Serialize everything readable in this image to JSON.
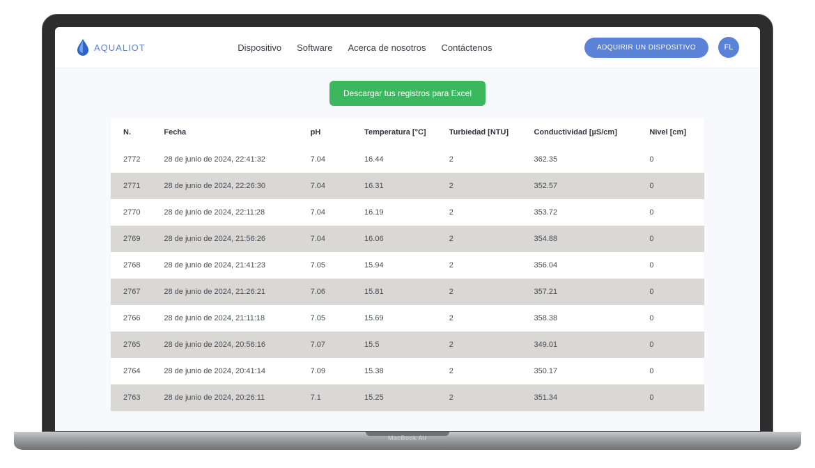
{
  "brand": {
    "name": "AQUALIOT"
  },
  "nav": {
    "items": [
      {
        "label": "Dispositivo"
      },
      {
        "label": "Software"
      },
      {
        "label": "Acerca de nosotros"
      },
      {
        "label": "Contáctenos"
      }
    ]
  },
  "cta": {
    "label": "ADQUIRIR UN DISPOSITIVO"
  },
  "avatar": {
    "initials": "FL"
  },
  "download": {
    "label": "Descargar tus registros para Excel"
  },
  "device_label": "MacBook Air",
  "colors": {
    "primary": "#5a82d6",
    "success": "#3bb75e",
    "row_alt": "#d9d8d4",
    "page_bg": "#f8f9fc",
    "text": "#3a3f4a"
  },
  "table": {
    "columns": [
      {
        "key": "n",
        "label": "N."
      },
      {
        "key": "fecha",
        "label": "Fecha"
      },
      {
        "key": "ph",
        "label": "pH"
      },
      {
        "key": "temp",
        "label": "Temperatura [°C]"
      },
      {
        "key": "turb",
        "label": "Turbiedad [NTU]"
      },
      {
        "key": "cond",
        "label": "Conductividad [µS/cm]"
      },
      {
        "key": "nivel",
        "label": "Nivel [cm]"
      }
    ],
    "rows": [
      {
        "n": "2772",
        "fecha": "28 de junio de 2024, 22:41:32",
        "ph": "7.04",
        "temp": "16.44",
        "turb": "2",
        "cond": "362.35",
        "nivel": "0"
      },
      {
        "n": "2771",
        "fecha": "28 de junio de 2024, 22:26:30",
        "ph": "7.04",
        "temp": "16.31",
        "turb": "2",
        "cond": "352.57",
        "nivel": "0"
      },
      {
        "n": "2770",
        "fecha": "28 de junio de 2024, 22:11:28",
        "ph": "7.04",
        "temp": "16.19",
        "turb": "2",
        "cond": "353.72",
        "nivel": "0"
      },
      {
        "n": "2769",
        "fecha": "28 de junio de 2024, 21:56:26",
        "ph": "7.04",
        "temp": "16.06",
        "turb": "2",
        "cond": "354.88",
        "nivel": "0"
      },
      {
        "n": "2768",
        "fecha": "28 de junio de 2024, 21:41:23",
        "ph": "7.05",
        "temp": "15.94",
        "turb": "2",
        "cond": "356.04",
        "nivel": "0"
      },
      {
        "n": "2767",
        "fecha": "28 de junio de 2024, 21:26:21",
        "ph": "7.06",
        "temp": "15.81",
        "turb": "2",
        "cond": "357.21",
        "nivel": "0"
      },
      {
        "n": "2766",
        "fecha": "28 de junio de 2024, 21:11:18",
        "ph": "7.05",
        "temp": "15.69",
        "turb": "2",
        "cond": "358.38",
        "nivel": "0"
      },
      {
        "n": "2765",
        "fecha": "28 de junio de 2024, 20:56:16",
        "ph": "7.07",
        "temp": "15.5",
        "turb": "2",
        "cond": "349.01",
        "nivel": "0"
      },
      {
        "n": "2764",
        "fecha": "28 de junio de 2024, 20:41:14",
        "ph": "7.09",
        "temp": "15.38",
        "turb": "2",
        "cond": "350.17",
        "nivel": "0"
      },
      {
        "n": "2763",
        "fecha": "28 de junio de 2024, 20:26:11",
        "ph": "7.1",
        "temp": "15.25",
        "turb": "2",
        "cond": "351.34",
        "nivel": "0"
      }
    ]
  }
}
